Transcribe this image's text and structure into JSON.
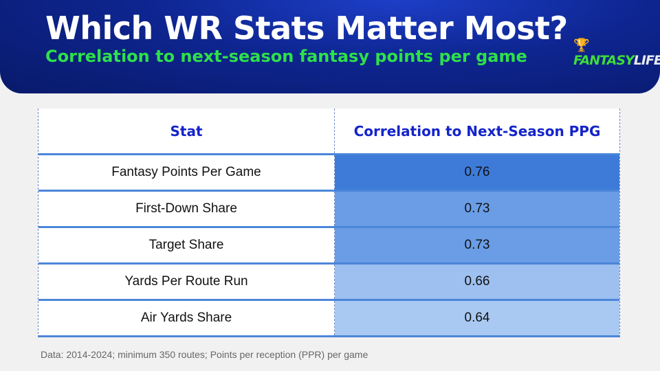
{
  "header": {
    "title": "Which WR Stats Matter Most?",
    "subtitle": "Correlation to next-season fantasy points per game",
    "logo": "FANTASYLIFE"
  },
  "table": {
    "columns": [
      "Stat",
      "Correlation to Next-Season PPG"
    ],
    "rows": [
      {
        "stat": "Fantasy Points Per Game",
        "value": "0.76",
        "color": "#3e7bd9"
      },
      {
        "stat": "First-Down Share",
        "value": "0.73",
        "color": "#6a9de6"
      },
      {
        "stat": "Target Share",
        "value": "0.73",
        "color": "#6a9de6"
      },
      {
        "stat": "Yards Per Route Run",
        "value": "0.66",
        "color": "#9dc0f0"
      },
      {
        "stat": "Air Yards Share",
        "value": "0.64",
        "color": "#a9c9f3"
      }
    ]
  },
  "footnote": "Data: 2014-2024; minimum 350 routes; Points per reception (PPR) per game"
}
